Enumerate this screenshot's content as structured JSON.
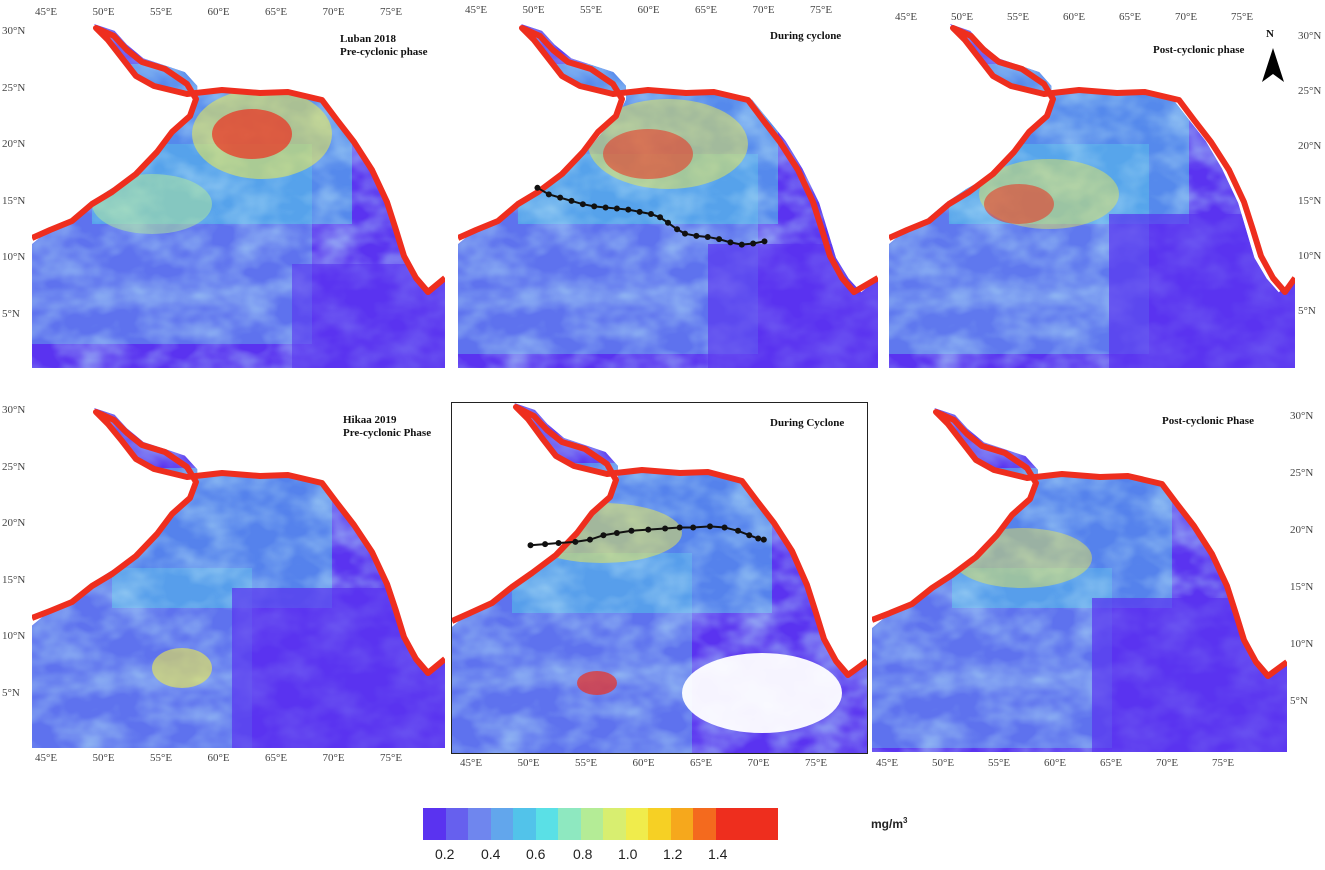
{
  "panels": [
    {
      "title_line1": "Luban 2018",
      "title_line2": "Pre-cyclonic phase"
    },
    {
      "title_line1": "During cyclone",
      "title_line2": ""
    },
    {
      "title_line1": "Post-cyclonic phase",
      "title_line2": ""
    },
    {
      "title_line1": "Hikaa 2019",
      "title_line2": "Pre-cyclonic Phase"
    },
    {
      "title_line1": "During Cyclone",
      "title_line2": ""
    },
    {
      "title_line1": "Post-cyclonic Phase",
      "title_line2": ""
    }
  ],
  "north_arrow": {
    "letter": "N"
  },
  "lon_ticks": [
    "45°E",
    "50°E",
    "55°E",
    "60°E",
    "65°E",
    "70°E",
    "75°E"
  ],
  "lat_ticks": [
    "30°N",
    "25°N",
    "20°N",
    "15°N",
    "10°N",
    "5°N"
  ],
  "tracks": {
    "luban_2018": [
      [
        50.5,
        16.5
      ],
      [
        51.5,
        15.9
      ],
      [
        52.5,
        15.6
      ],
      [
        53.5,
        15.3
      ],
      [
        54.5,
        15.0
      ],
      [
        55.5,
        14.8
      ],
      [
        56.5,
        14.7
      ],
      [
        57.5,
        14.6
      ],
      [
        58.5,
        14.5
      ],
      [
        59.5,
        14.3
      ],
      [
        60.5,
        14.1
      ],
      [
        61.3,
        13.8
      ],
      [
        62.0,
        13.3
      ],
      [
        62.8,
        12.7
      ],
      [
        63.5,
        12.3
      ],
      [
        64.5,
        12.1
      ],
      [
        65.5,
        12.0
      ],
      [
        66.5,
        11.8
      ],
      [
        67.5,
        11.5
      ],
      [
        68.5,
        11.3
      ],
      [
        69.5,
        11.4
      ],
      [
        70.5,
        11.6
      ]
    ],
    "hikaa_2019": [
      [
        50.5,
        18.7
      ],
      [
        51.8,
        18.8
      ],
      [
        53.0,
        18.9
      ],
      [
        54.5,
        19.0
      ],
      [
        55.8,
        19.2
      ],
      [
        57.0,
        19.6
      ],
      [
        58.2,
        19.8
      ],
      [
        59.5,
        20.0
      ],
      [
        61.0,
        20.1
      ],
      [
        62.5,
        20.2
      ],
      [
        63.8,
        20.3
      ],
      [
        65.0,
        20.3
      ],
      [
        66.5,
        20.4
      ],
      [
        67.8,
        20.3
      ],
      [
        69.0,
        20.0
      ],
      [
        70.0,
        19.6
      ],
      [
        70.8,
        19.3
      ],
      [
        71.3,
        19.2
      ]
    ]
  },
  "legend": {
    "unit": "mg/m",
    "unit_sup": "3",
    "labels": [
      "0.2",
      "0.4",
      "0.6",
      "0.8",
      "1.0",
      "1.2",
      "1.4"
    ],
    "colors": [
      "#5a33f0",
      "#6660ee",
      "#6f86ee",
      "#62a6ec",
      "#52c3ea",
      "#5ae0e6",
      "#8ee8c0",
      "#b4ec96",
      "#d8ee70",
      "#f0ec4c",
      "#f6d024",
      "#f6a81c",
      "#f46a1e",
      "#ee2e1e"
    ]
  }
}
